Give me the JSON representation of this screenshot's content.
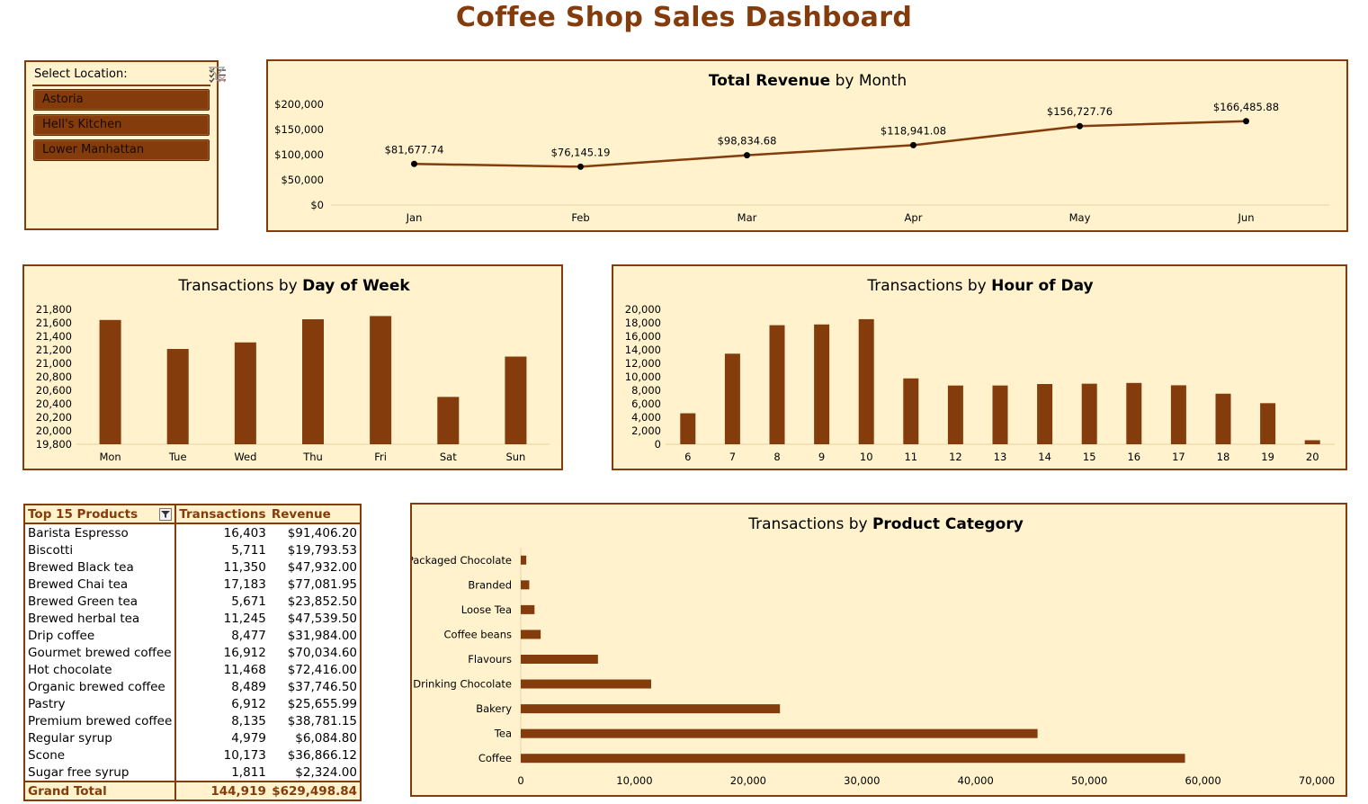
{
  "title": "Coffee Shop Sales Dashboard",
  "colors": {
    "accent": "#843C0C",
    "panel_bg": "#FFF2CC"
  },
  "slicer": {
    "label": "Select Location:",
    "icons": [
      "multi-select-icon",
      "clear-filter-icon"
    ],
    "items": [
      "Astoria",
      "Hell's Kitchen",
      "Lower Manhattan"
    ]
  },
  "revenue_chart": {
    "title_normal": "Total Revenue",
    "title_suffix": " by Month",
    "chart_data": {
      "type": "line",
      "categories": [
        "Jan",
        "Feb",
        "Mar",
        "Apr",
        "May",
        "Jun"
      ],
      "values": [
        81677.74,
        76145.19,
        98834.68,
        118941.08,
        156727.76,
        166485.88
      ],
      "data_labels": [
        "$81,677.74",
        "$76,145.19",
        "$98,834.68",
        "$118,941.08",
        "$156,727.76",
        "$166,485.88"
      ],
      "y_ticks": [
        "$0",
        "$50,000",
        "$100,000",
        "$150,000",
        "$200,000"
      ],
      "ylim": [
        0,
        200000
      ]
    }
  },
  "dow_chart": {
    "title_prefix": "Transactions by ",
    "title_bold": "Day of Week",
    "chart_data": {
      "type": "bar",
      "categories": [
        "Mon",
        "Tue",
        "Wed",
        "Thu",
        "Fri",
        "Sat",
        "Sun"
      ],
      "values": [
        21643,
        21213,
        21310,
        21653,
        21701,
        20502,
        21100
      ],
      "y_ticks": [
        "19,800",
        "20,000",
        "20,200",
        "20,400",
        "20,600",
        "20,800",
        "21,000",
        "21,200",
        "21,400",
        "21,600",
        "21,800"
      ],
      "ylim": [
        19800,
        21800
      ]
    }
  },
  "hour_chart": {
    "title_prefix": "Transactions by ",
    "title_bold": "Hour of Day",
    "chart_data": {
      "type": "bar",
      "categories": [
        "6",
        "7",
        "8",
        "9",
        "10",
        "11",
        "12",
        "13",
        "14",
        "15",
        "16",
        "17",
        "18",
        "19",
        "20"
      ],
      "values": [
        4594,
        13428,
        17654,
        17764,
        18545,
        9766,
        8708,
        8714,
        8933,
        8979,
        9093,
        8745,
        7498,
        6092,
        603
      ],
      "y_ticks": [
        "0",
        "2,000",
        "4,000",
        "6,000",
        "8,000",
        "10,000",
        "12,000",
        "14,000",
        "16,000",
        "18,000",
        "20,000"
      ],
      "ylim": [
        0,
        20000
      ]
    }
  },
  "category_chart": {
    "title_prefix": "Transactions by ",
    "title_bold": "Product Category",
    "chart_data": {
      "type": "bar",
      "orientation": "horizontal",
      "categories": [
        "Packaged Chocolate",
        "Branded",
        "Loose Tea",
        "Coffee beans",
        "Flavours",
        "Drinking Chocolate",
        "Bakery",
        "Tea",
        "Coffee"
      ],
      "values": [
        487,
        747,
        1210,
        1753,
        6790,
        11468,
        22796,
        45449,
        58416
      ],
      "x_ticks": [
        "0",
        "10,000",
        "20,000",
        "30,000",
        "40,000",
        "50,000",
        "60,000",
        "70,000"
      ],
      "xlim": [
        0,
        70000
      ]
    }
  },
  "pivot": {
    "headers": [
      "Top 15 Products",
      "Transactions",
      "Revenue"
    ],
    "rows": [
      [
        "Barista Espresso",
        "16,403",
        "$91,406.20"
      ],
      [
        "Biscotti",
        "5,711",
        "$19,793.53"
      ],
      [
        "Brewed Black tea",
        "11,350",
        "$47,932.00"
      ],
      [
        "Brewed Chai tea",
        "17,183",
        "$77,081.95"
      ],
      [
        "Brewed Green tea",
        "5,671",
        "$23,852.50"
      ],
      [
        "Brewed herbal tea",
        "11,245",
        "$47,539.50"
      ],
      [
        "Drip coffee",
        "8,477",
        "$31,984.00"
      ],
      [
        "Gourmet brewed coffee",
        "16,912",
        "$70,034.60"
      ],
      [
        "Hot chocolate",
        "11,468",
        "$72,416.00"
      ],
      [
        "Organic brewed coffee",
        "8,489",
        "$37,746.50"
      ],
      [
        "Pastry",
        "6,912",
        "$25,655.99"
      ],
      [
        "Premium brewed coffee",
        "8,135",
        "$38,781.15"
      ],
      [
        "Regular syrup",
        "4,979",
        "$6,084.80"
      ],
      [
        "Scone",
        "10,173",
        "$36,866.12"
      ],
      [
        "Sugar free syrup",
        "1,811",
        "$2,324.00"
      ]
    ],
    "total": [
      "Grand Total",
      "144,919",
      "$629,498.84"
    ]
  }
}
